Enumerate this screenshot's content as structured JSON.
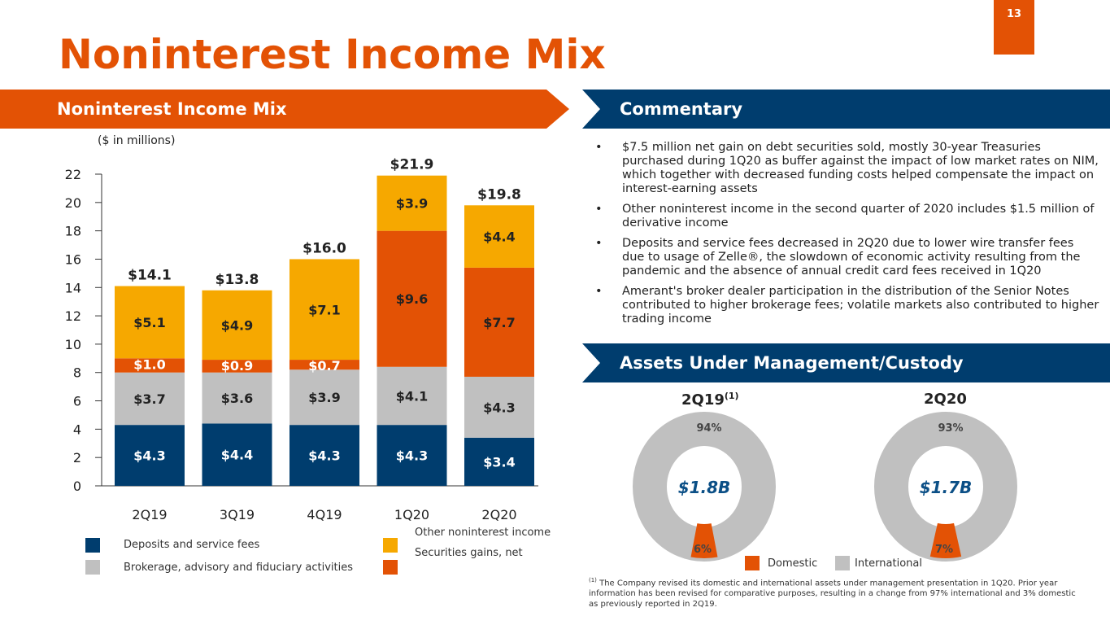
{
  "page_number": "13",
  "title": "Noninterest Income Mix",
  "left_header": "Noninterest Income Mix",
  "right_header": "Commentary",
  "aum_header": "Assets Under Management/Custody",
  "units": "($ in millions)",
  "commentary": [
    "$7.5 million net gain on debt securities sold, mostly 30-year Treasuries purchased during 1Q20 as buffer against the impact of low market rates on NIM, which together with decreased funding costs helped compensate the impact on interest-earning assets",
    "Other noninterest income in the second quarter of 2020 includes $1.5 million of derivative income",
    "Deposits and service fees decreased in 2Q20 due to lower wire transfer fees due to usage of Zelle®, the slowdown of economic activity resulting from the pandemic and the absence of annual credit card fees received in 1Q20",
    "Amerant's broker dealer participation in the distribution of the Senior Notes contributed to higher brokerage fees; volatile markets also contributed to higher trading income"
  ],
  "colors": {
    "orange": "#e35205",
    "navy": "#003d6e",
    "gray": "#c0c0c0",
    "yellow": "#f6a800"
  },
  "chart_data": {
    "type": "bar",
    "stacked": true,
    "categories": [
      "2Q19",
      "3Q19",
      "4Q19",
      "1Q20",
      "2Q20"
    ],
    "ylim": [
      0,
      22
    ],
    "yticks": [
      "0",
      "2",
      "4",
      "6",
      "8",
      "10",
      "12",
      "14",
      "16",
      "18",
      "20",
      "22"
    ],
    "series": [
      {
        "name": "Deposits and service fees",
        "color": "#003d6e",
        "values": [
          4.3,
          4.4,
          4.3,
          4.3,
          3.4
        ],
        "labels": [
          "$4.3",
          "$4.4",
          "$4.3",
          "$4.3",
          "$3.4"
        ]
      },
      {
        "name": "Brokerage, advisory and fiduciary activities",
        "color": "#c0c0c0",
        "values": [
          3.7,
          3.6,
          3.9,
          4.1,
          4.3
        ],
        "labels": [
          "$3.7",
          "$3.6",
          "$3.9",
          "$4.1",
          "$4.3"
        ]
      },
      {
        "name": "Securities gains, net",
        "color": "#e35205",
        "values": [
          1.0,
          0.9,
          0.7,
          9.6,
          7.7
        ],
        "labels": [
          "$1.0",
          "$0.9",
          "$0.7",
          "$9.6",
          "$7.7"
        ]
      },
      {
        "name": "Other noninterest income",
        "color": "#f6a800",
        "values": [
          5.1,
          4.9,
          7.1,
          3.9,
          4.4
        ],
        "labels": [
          "$5.1",
          "$4.9",
          "$7.1",
          "$3.9",
          "$4.4"
        ]
      }
    ],
    "totals": [
      "$14.1",
      "$13.8",
      "$16.0",
      "$21.9",
      "$19.8"
    ],
    "legend": [
      "Deposits and service fees",
      "Brokerage, advisory and fiduciary activities",
      "Other noninterest income",
      "Securities gains, net"
    ]
  },
  "donuts": [
    {
      "label": "2Q19",
      "sup": "(1)",
      "total": "$1.8B",
      "international": 94,
      "domestic": 6,
      "intl_label": "94%",
      "dom_label": "6%"
    },
    {
      "label": "2Q20",
      "sup": "",
      "total": "$1.7B",
      "international": 93,
      "domestic": 7,
      "intl_label": "93%",
      "dom_label": "7%"
    }
  ],
  "donut_legend": [
    "Domestic",
    "International"
  ],
  "footnote_mark": "(1)",
  "footnote": "The Company revised its domestic and international assets under management presentation in 1Q20. Prior year information has been revised for comparative purposes, resulting in a change from 97% international and 3% domestic as previously reported in 2Q19."
}
